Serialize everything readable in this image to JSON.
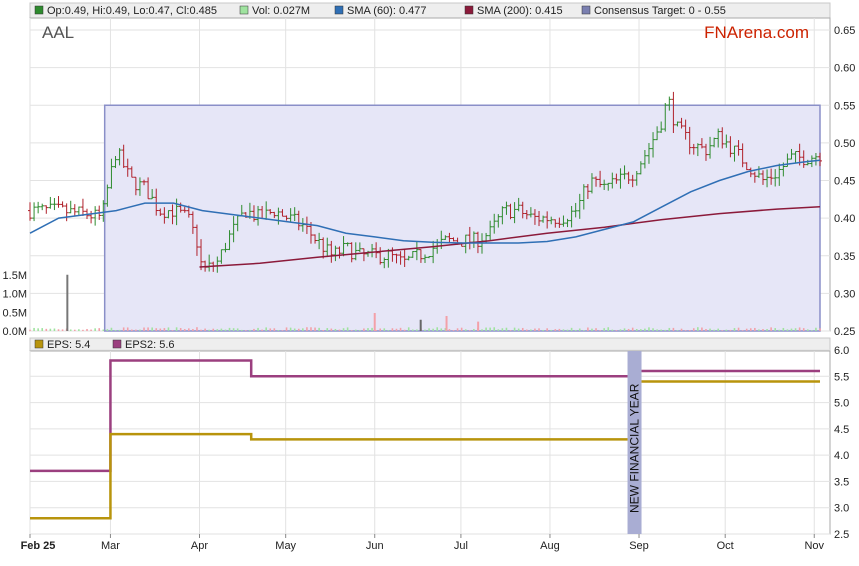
{
  "legend_top": [
    {
      "text": "Op:0.49, Hi:0.49, Lo:0.47, Cl:0.485",
      "color": "#2e8b2e"
    },
    {
      "text": "Vol: 0.027M",
      "color": "#9fe39f"
    },
    {
      "text": "SMA (60): 0.477",
      "color": "#2f6fb5"
    },
    {
      "text": "SMA (200): 0.415",
      "color": "#8b1a3a"
    },
    {
      "text": "Consensus Target: 0 - 0.55",
      "color": "#7a7fb0"
    }
  ],
  "legend_bottom": [
    {
      "text": "EPS: 5.4",
      "color": "#b8940c"
    },
    {
      "text": "EPS2: 5.6",
      "color": "#9b3f7f"
    }
  ],
  "ticker": "AAL",
  "brand": "FNArena.com",
  "band_label": "NEW FINANCIAL YEAR",
  "chart_data": [
    {
      "type": "candlestick",
      "name": "price",
      "ylim": [
        0.25,
        0.65
      ],
      "yticks": [
        "0.65",
        "0.60",
        "0.55",
        "0.50",
        "0.45",
        "0.40",
        "0.35",
        "0.30",
        "0.25"
      ],
      "xticks": [
        {
          "label": "Feb 25",
          "day": 0
        },
        {
          "label": "Mar",
          "day": 28
        },
        {
          "label": "Apr",
          "day": 59
        },
        {
          "label": "May",
          "day": 89
        },
        {
          "label": "Jun",
          "day": 120
        },
        {
          "label": "Jul",
          "day": 150
        },
        {
          "label": "Aug",
          "day": 181
        },
        {
          "label": "Sep",
          "day": 212
        },
        {
          "label": "Oct",
          "day": 242
        },
        {
          "label": "Nov",
          "day": 273
        }
      ],
      "x_range_days": [
        0,
        275
      ],
      "consensus_target": {
        "low": 0,
        "high": 0.55,
        "start_day": 26
      },
      "price_path": [
        [
          0,
          0.41
        ],
        [
          10,
          0.41
        ],
        [
          20,
          0.405
        ],
        [
          25,
          0.4
        ],
        [
          27,
          0.44
        ],
        [
          30,
          0.49
        ],
        [
          35,
          0.45
        ],
        [
          40,
          0.44
        ],
        [
          45,
          0.41
        ],
        [
          50,
          0.41
        ],
        [
          55,
          0.4
        ],
        [
          58,
          0.37
        ],
        [
          60,
          0.33
        ],
        [
          65,
          0.34
        ],
        [
          70,
          0.38
        ],
        [
          75,
          0.41
        ],
        [
          80,
          0.4
        ],
        [
          85,
          0.41
        ],
        [
          90,
          0.4
        ],
        [
          95,
          0.39
        ],
        [
          100,
          0.37
        ],
        [
          105,
          0.35
        ],
        [
          110,
          0.36
        ],
        [
          115,
          0.35
        ],
        [
          120,
          0.35
        ],
        [
          125,
          0.35
        ],
        [
          130,
          0.34
        ],
        [
          135,
          0.35
        ],
        [
          140,
          0.36
        ],
        [
          145,
          0.37
        ],
        [
          150,
          0.37
        ],
        [
          155,
          0.37
        ],
        [
          160,
          0.38
        ],
        [
          165,
          0.41
        ],
        [
          170,
          0.41
        ],
        [
          175,
          0.4
        ],
        [
          180,
          0.4
        ],
        [
          185,
          0.4
        ],
        [
          190,
          0.41
        ],
        [
          195,
          0.45
        ],
        [
          200,
          0.44
        ],
        [
          205,
          0.45
        ],
        [
          210,
          0.46
        ],
        [
          215,
          0.49
        ],
        [
          220,
          0.53
        ],
        [
          222,
          0.56
        ],
        [
          225,
          0.52
        ],
        [
          230,
          0.5
        ],
        [
          235,
          0.49
        ],
        [
          240,
          0.51
        ],
        [
          245,
          0.49
        ],
        [
          250,
          0.47
        ],
        [
          255,
          0.45
        ],
        [
          260,
          0.46
        ],
        [
          265,
          0.48
        ],
        [
          270,
          0.48
        ],
        [
          275,
          0.485
        ]
      ],
      "sma60": [
        [
          0,
          0.38
        ],
        [
          10,
          0.4
        ],
        [
          20,
          0.405
        ],
        [
          30,
          0.41
        ],
        [
          40,
          0.42
        ],
        [
          50,
          0.42
        ],
        [
          60,
          0.41
        ],
        [
          70,
          0.405
        ],
        [
          80,
          0.4
        ],
        [
          90,
          0.395
        ],
        [
          100,
          0.39
        ],
        [
          110,
          0.38
        ],
        [
          120,
          0.375
        ],
        [
          130,
          0.37
        ],
        [
          140,
          0.368
        ],
        [
          150,
          0.367
        ],
        [
          160,
          0.367
        ],
        [
          170,
          0.367
        ],
        [
          180,
          0.369
        ],
        [
          190,
          0.375
        ],
        [
          200,
          0.385
        ],
        [
          210,
          0.395
        ],
        [
          220,
          0.415
        ],
        [
          230,
          0.435
        ],
        [
          240,
          0.45
        ],
        [
          250,
          0.462
        ],
        [
          260,
          0.47
        ],
        [
          270,
          0.475
        ],
        [
          275,
          0.477
        ]
      ],
      "sma200": [
        [
          59,
          0.335
        ],
        [
          80,
          0.34
        ],
        [
          100,
          0.348
        ],
        [
          120,
          0.355
        ],
        [
          140,
          0.362
        ],
        [
          160,
          0.37
        ],
        [
          180,
          0.38
        ],
        [
          200,
          0.388
        ],
        [
          220,
          0.398
        ],
        [
          240,
          0.406
        ],
        [
          260,
          0.412
        ],
        [
          275,
          0.415
        ]
      ]
    },
    {
      "type": "bar",
      "name": "volume",
      "ylim": [
        0,
        2000000
      ],
      "yticks": [
        "1.5M",
        "1.0M",
        "0.5M",
        "0.0M"
      ],
      "spikes": [
        [
          13,
          1500000
        ],
        [
          120,
          480000
        ],
        [
          136,
          300000
        ],
        [
          145,
          400000
        ],
        [
          156,
          250000
        ]
      ],
      "baseline_level": 60000
    },
    {
      "type": "line",
      "name": "eps",
      "ylim": [
        2.5,
        6.0
      ],
      "yticks": [
        "6.0",
        "5.5",
        "5.0",
        "4.5",
        "4.0",
        "3.5",
        "3.0",
        "2.5"
      ],
      "series": [
        {
          "name": "EPS",
          "steps": [
            [
              0,
              2.8
            ],
            [
              28,
              4.4
            ],
            [
              77,
              4.3
            ],
            [
              210,
              5.4
            ]
          ]
        },
        {
          "name": "EPS2",
          "steps": [
            [
              0,
              3.7
            ],
            [
              28,
              5.8
            ],
            [
              77,
              5.5
            ],
            [
              210,
              5.6
            ]
          ]
        }
      ],
      "band_day": 208
    }
  ]
}
